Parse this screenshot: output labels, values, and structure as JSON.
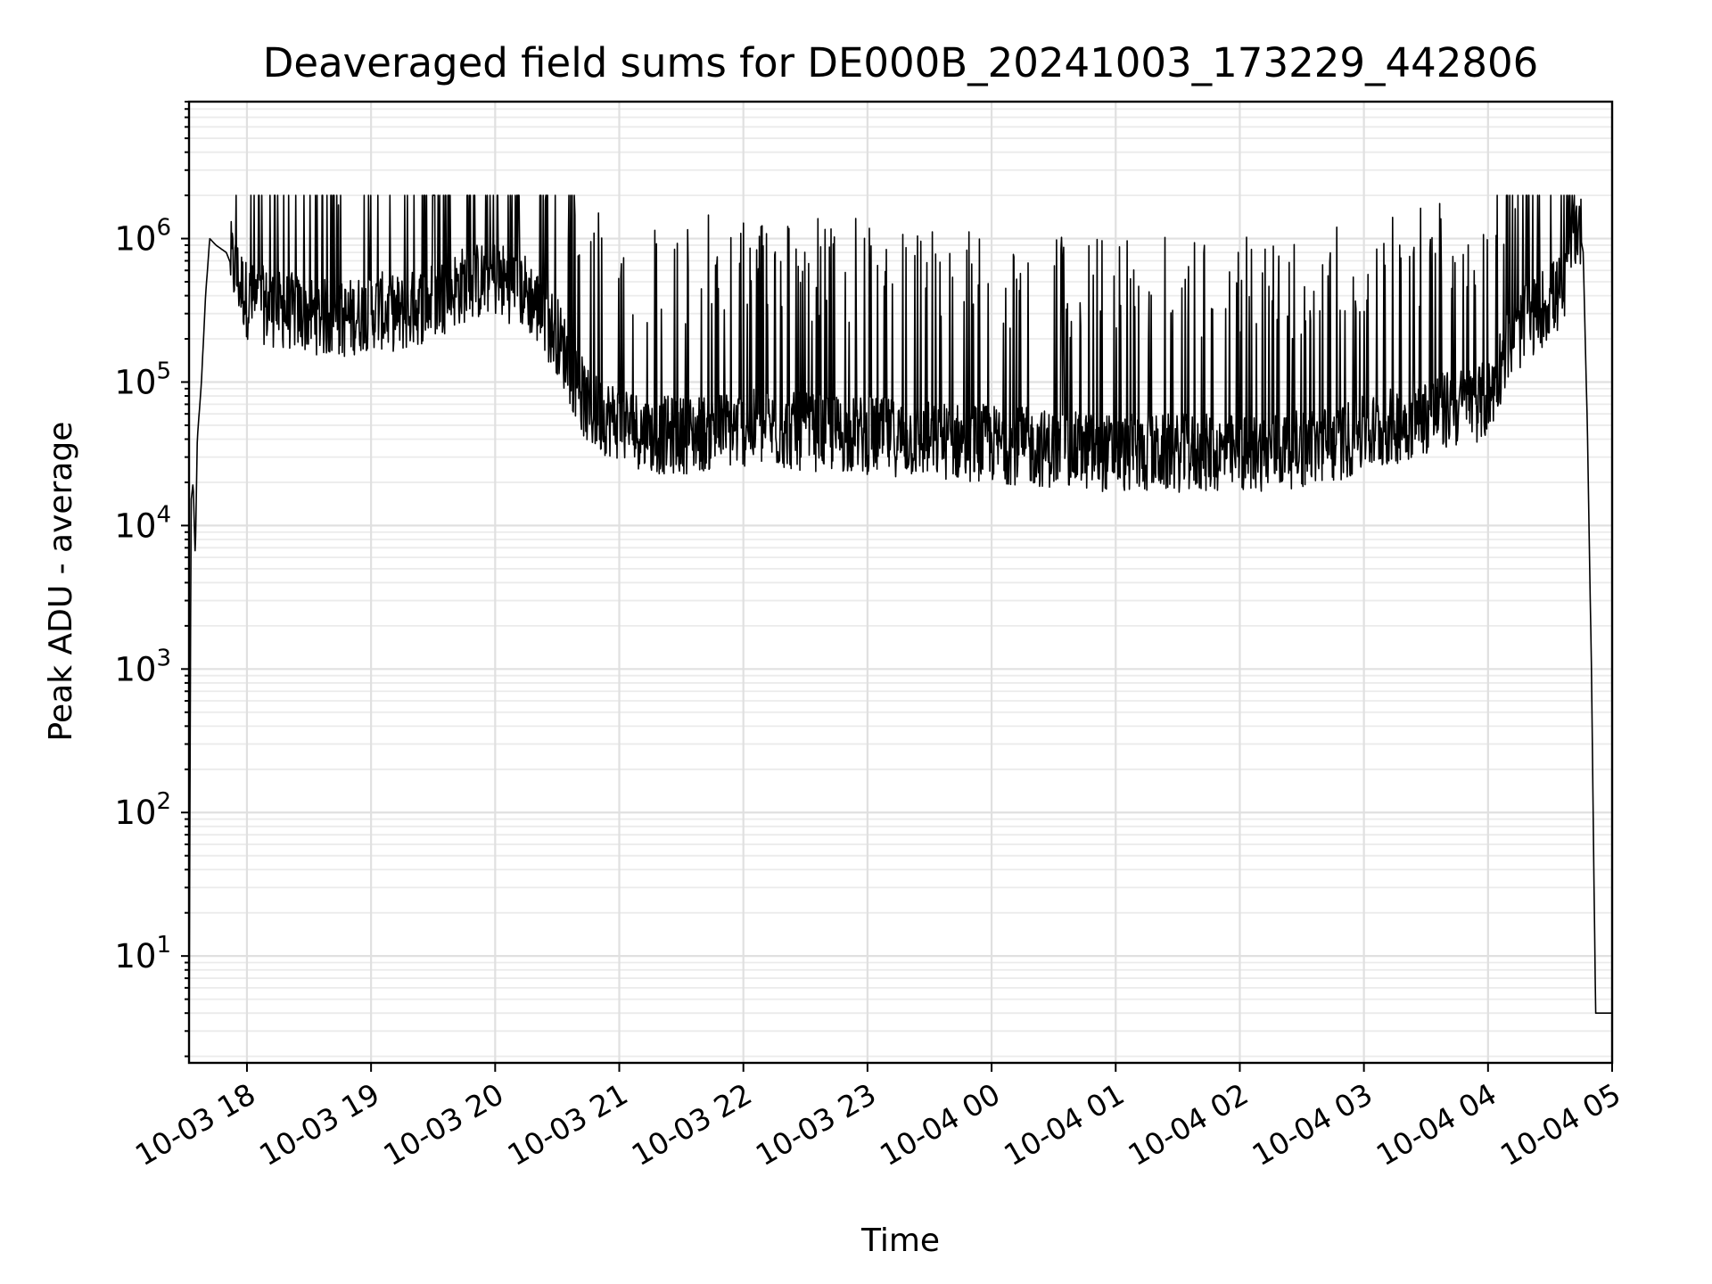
{
  "chart_data": {
    "type": "line",
    "title": "Deaveraged field sums for DE000B_20241003_173229_442806",
    "xlabel": "Time",
    "ylabel": "Peak ADU - average",
    "yscale": "log",
    "ylim": [
      1.8,
      9000000
    ],
    "xlim": [
      "2024-10-03 17:32",
      "2024-10-04 05:00"
    ],
    "grid": "major+minor",
    "x_tick_labels": [
      "10-03 18",
      "10-03 19",
      "10-03 20",
      "10-03 21",
      "10-03 22",
      "10-03 23",
      "10-04 00",
      "10-04 01",
      "10-04 02",
      "10-04 03",
      "10-04 04",
      "10-04 05"
    ],
    "x_ticks": [
      "2024-10-03 18:00",
      "2024-10-03 19:00",
      "2024-10-03 20:00",
      "2024-10-03 21:00",
      "2024-10-03 22:00",
      "2024-10-03 23:00",
      "2024-10-04 00:00",
      "2024-10-04 01:00",
      "2024-10-04 02:00",
      "2024-10-04 03:00",
      "2024-10-04 04:00",
      "2024-10-04 05:00"
    ],
    "y_tick_labels": [
      {
        "base": "10",
        "exp": "1",
        "value": 10
      },
      {
        "base": "10",
        "exp": "2",
        "value": 100
      },
      {
        "base": "10",
        "exp": "3",
        "value": 1000
      },
      {
        "base": "10",
        "exp": "4",
        "value": 10000
      },
      {
        "base": "10",
        "exp": "5",
        "value": 100000
      },
      {
        "base": "10",
        "exp": "6",
        "value": 1000000
      }
    ],
    "series": [
      {
        "color": "#000000",
        "x": [
          "2024-10-03 17:32",
          "2024-10-03 17:33",
          "2024-10-03 17:34",
          "2024-10-03 17:35",
          "2024-10-03 17:36",
          "2024-10-03 17:38",
          "2024-10-03 17:40",
          "2024-10-03 17:42",
          "2024-10-03 17:45",
          "2024-10-03 17:50",
          "2024-10-03 18:00",
          "2024-10-03 18:15",
          "2024-10-03 18:30",
          "2024-10-03 18:45",
          "2024-10-03 19:00",
          "2024-10-03 19:15",
          "2024-10-03 19:30",
          "2024-10-03 19:45",
          "2024-10-03 20:00",
          "2024-10-03 20:15",
          "2024-10-03 20:30",
          "2024-10-03 20:45",
          "2024-10-03 21:00",
          "2024-10-03 21:15",
          "2024-10-03 21:30",
          "2024-10-03 22:00",
          "2024-10-03 22:30",
          "2024-10-03 23:00",
          "2024-10-03 23:30",
          "2024-10-04 00:00",
          "2024-10-04 00:30",
          "2024-10-04 01:00",
          "2024-10-04 01:30",
          "2024-10-04 02:00",
          "2024-10-04 02:30",
          "2024-10-04 02:45",
          "2024-10-04 03:00",
          "2024-10-04 03:30",
          "2024-10-04 04:00",
          "2024-10-04 04:10",
          "2024-10-04 04:20",
          "2024-10-04 04:30",
          "2024-10-04 04:37",
          "2024-10-04 04:40",
          "2024-10-04 04:42",
          "2024-10-04 04:44",
          "2024-10-04 04:46",
          "2024-10-04 04:48",
          "2024-10-04 04:50",
          "2024-10-04 04:52",
          "2024-10-04 05:00"
        ],
        "y": [
          2,
          15000,
          20000,
          6000,
          40000,
          100000,
          400000,
          1000000,
          900000,
          800000,
          350000,
          300000,
          280000,
          250000,
          300000,
          280000,
          350000,
          450000,
          500000,
          400000,
          200000,
          60000,
          50000,
          40000,
          40000,
          45000,
          42000,
          40000,
          37000,
          35000,
          32000,
          30000,
          30000,
          30000,
          32000,
          35000,
          40000,
          55000,
          70000,
          180000,
          250000,
          350000,
          400000,
          900000,
          1100000,
          1200000,
          800000,
          50000,
          1000,
          4,
          4
        ]
      }
    ]
  }
}
